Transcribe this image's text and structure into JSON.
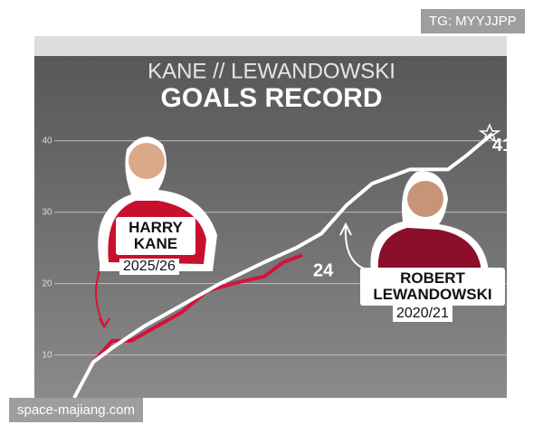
{
  "chart_data": {
    "type": "line",
    "title": "KANE // LEWANDOWSKI",
    "subtitle": "GOALS RECORD",
    "xlim": [
      0,
      36
    ],
    "ylim": [
      4,
      42
    ],
    "yticks": [
      10,
      20,
      30,
      40
    ],
    "grid": true,
    "series": [
      {
        "name": "ROBERT LEWANDOWSKI",
        "season": "2020/21",
        "color": "#ffffff",
        "x": [
          0.5,
          2,
          3.5,
          6,
          9,
          12,
          15.5,
          18,
          20,
          22,
          24,
          27,
          30,
          31.5,
          33.5
        ],
        "values": [
          4,
          9,
          11,
          14,
          17,
          20,
          23,
          25,
          27,
          31,
          34,
          36,
          36,
          38,
          41
        ]
      },
      {
        "name": "HARRY KANE",
        "season": "2025/26",
        "color": "#d8103a",
        "x": [
          0.5,
          2,
          3.5,
          5,
          7,
          9,
          11,
          13,
          15.5,
          17,
          18.5
        ],
        "values": [
          4,
          9,
          12,
          12,
          14,
          16,
          19,
          20,
          21,
          23,
          24
        ]
      }
    ]
  },
  "watermarks": [
    "TG: MYYJJPP",
    "space-majiang.com"
  ]
}
